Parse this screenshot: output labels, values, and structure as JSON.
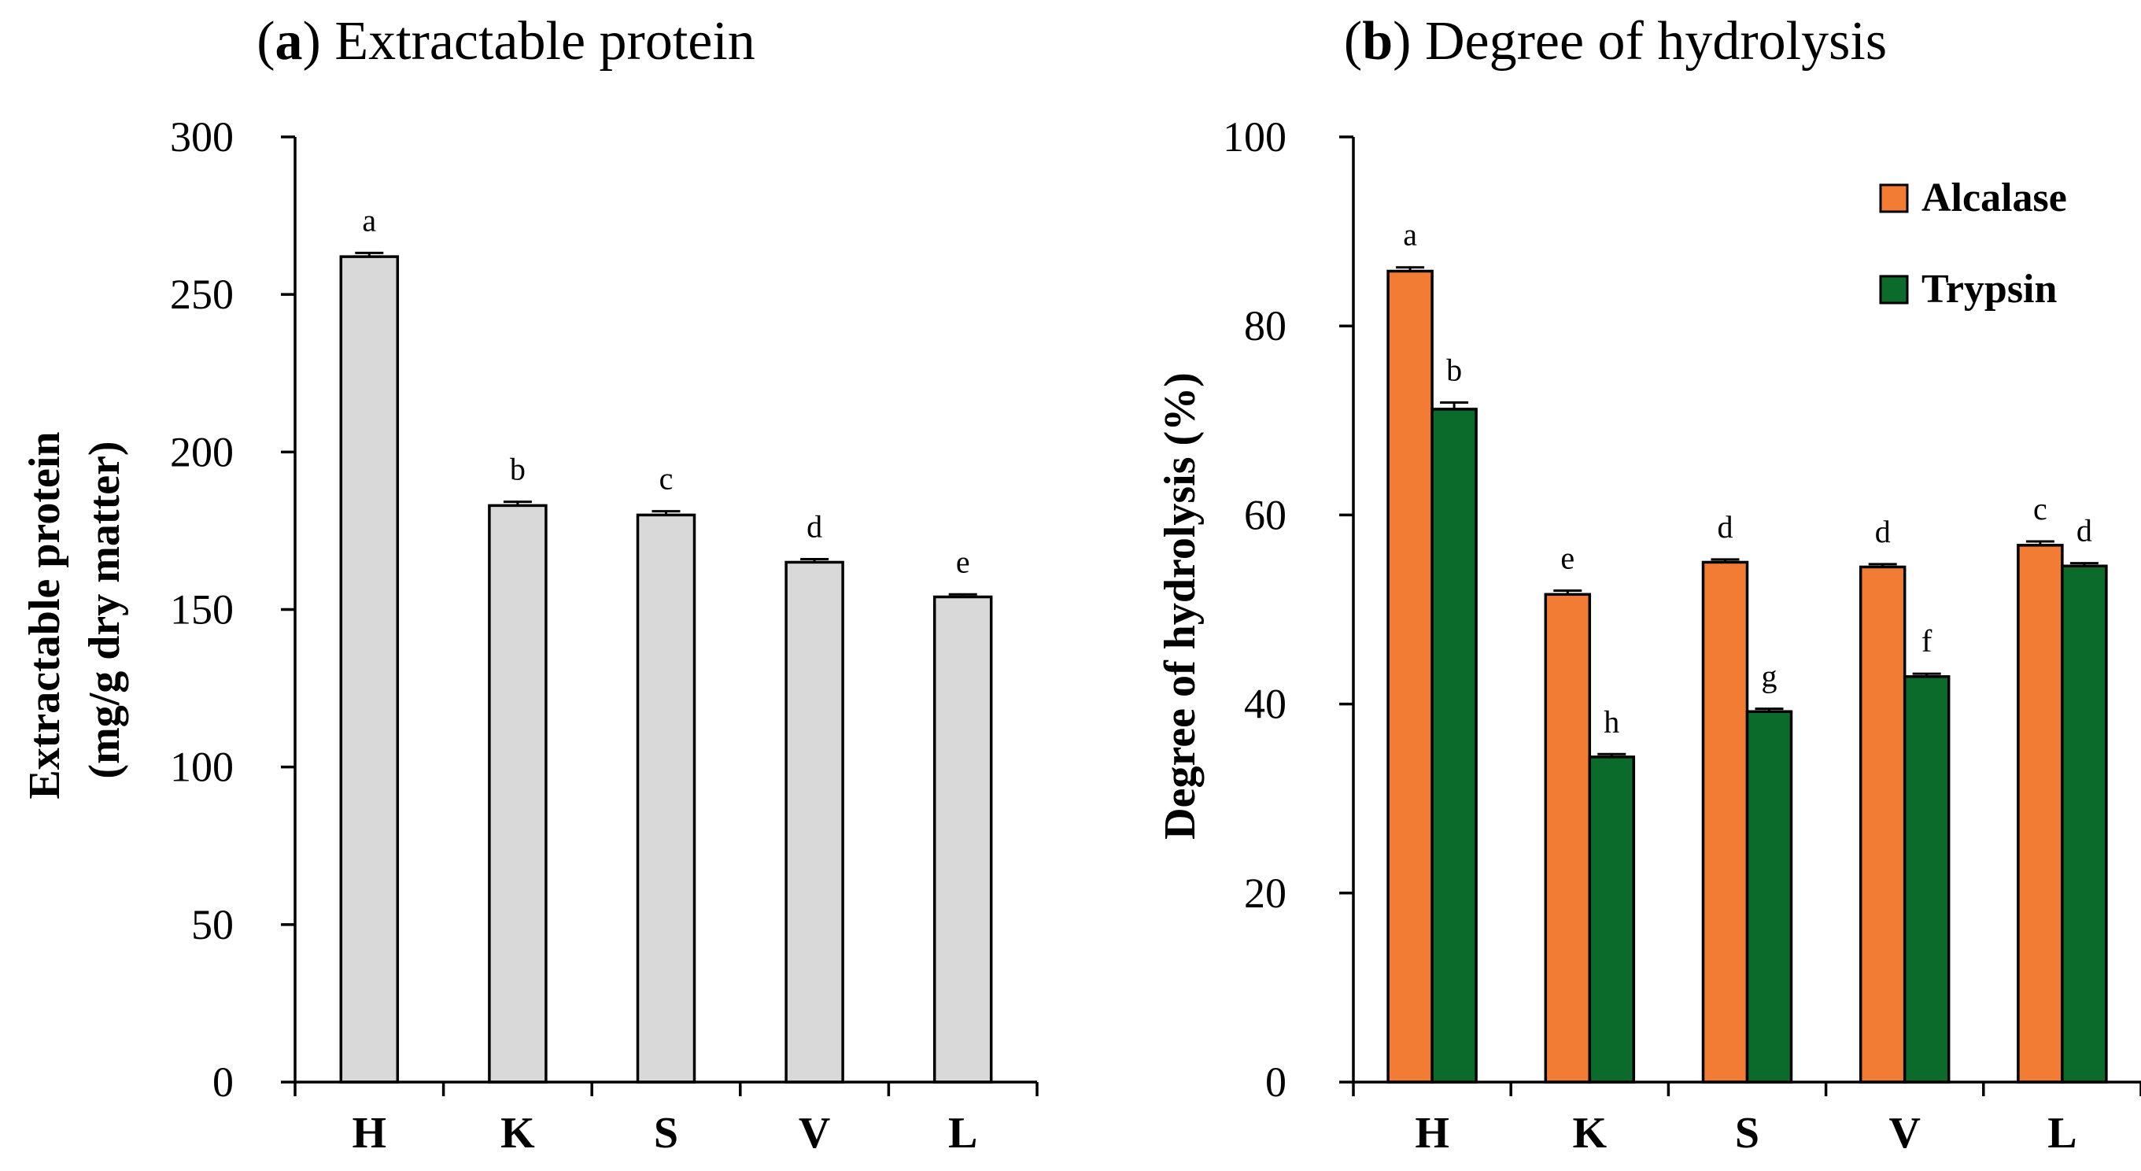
{
  "chart_data": [
    {
      "type": "bar",
      "panel": "a",
      "title": "Extractable protein",
      "xlabel": "",
      "ylabel": "Extractable protein",
      "ylabel_unit": "(mg/g dry matter)",
      "categories": [
        "H",
        "K",
        "S",
        "V",
        "L"
      ],
      "ylim": [
        0,
        300
      ],
      "yticks": [
        0,
        50,
        100,
        150,
        200,
        250,
        300
      ],
      "series": [
        {
          "name": "Extractable protein",
          "color": "#d9d9d9",
          "values": [
            262,
            183,
            180,
            165,
            154
          ],
          "errors": [
            1.2,
            1.2,
            1.2,
            1.0,
            0.8
          ],
          "labels": [
            "a",
            "b",
            "c",
            "d",
            "e"
          ]
        }
      ],
      "grid": false,
      "legend": "none"
    },
    {
      "type": "bar",
      "panel": "b",
      "title": "Degree of hydrolysis",
      "xlabel": "",
      "ylabel": "Degree of hydrolysis (%)",
      "categories": [
        "H",
        "K",
        "S",
        "V",
        "L"
      ],
      "ylim": [
        0,
        100
      ],
      "yticks": [
        0,
        20,
        40,
        60,
        80,
        100
      ],
      "series": [
        {
          "name": "Alcalase",
          "color": "#f37c35",
          "values": [
            85.8,
            51.6,
            55.0,
            54.5,
            56.8
          ],
          "errors": [
            0.4,
            0.4,
            0.3,
            0.3,
            0.4
          ],
          "labels": [
            "a",
            "e",
            "d",
            "d",
            "c"
          ]
        },
        {
          "name": "Trypsin",
          "color": "#0b6b2a",
          "values": [
            71.2,
            34.4,
            39.2,
            42.9,
            54.6
          ],
          "errors": [
            0.7,
            0.3,
            0.3,
            0.3,
            0.3
          ],
          "labels": [
            "b",
            "h",
            "g",
            "f",
            "d"
          ]
        }
      ],
      "grid": false,
      "legend": "top-right"
    }
  ]
}
